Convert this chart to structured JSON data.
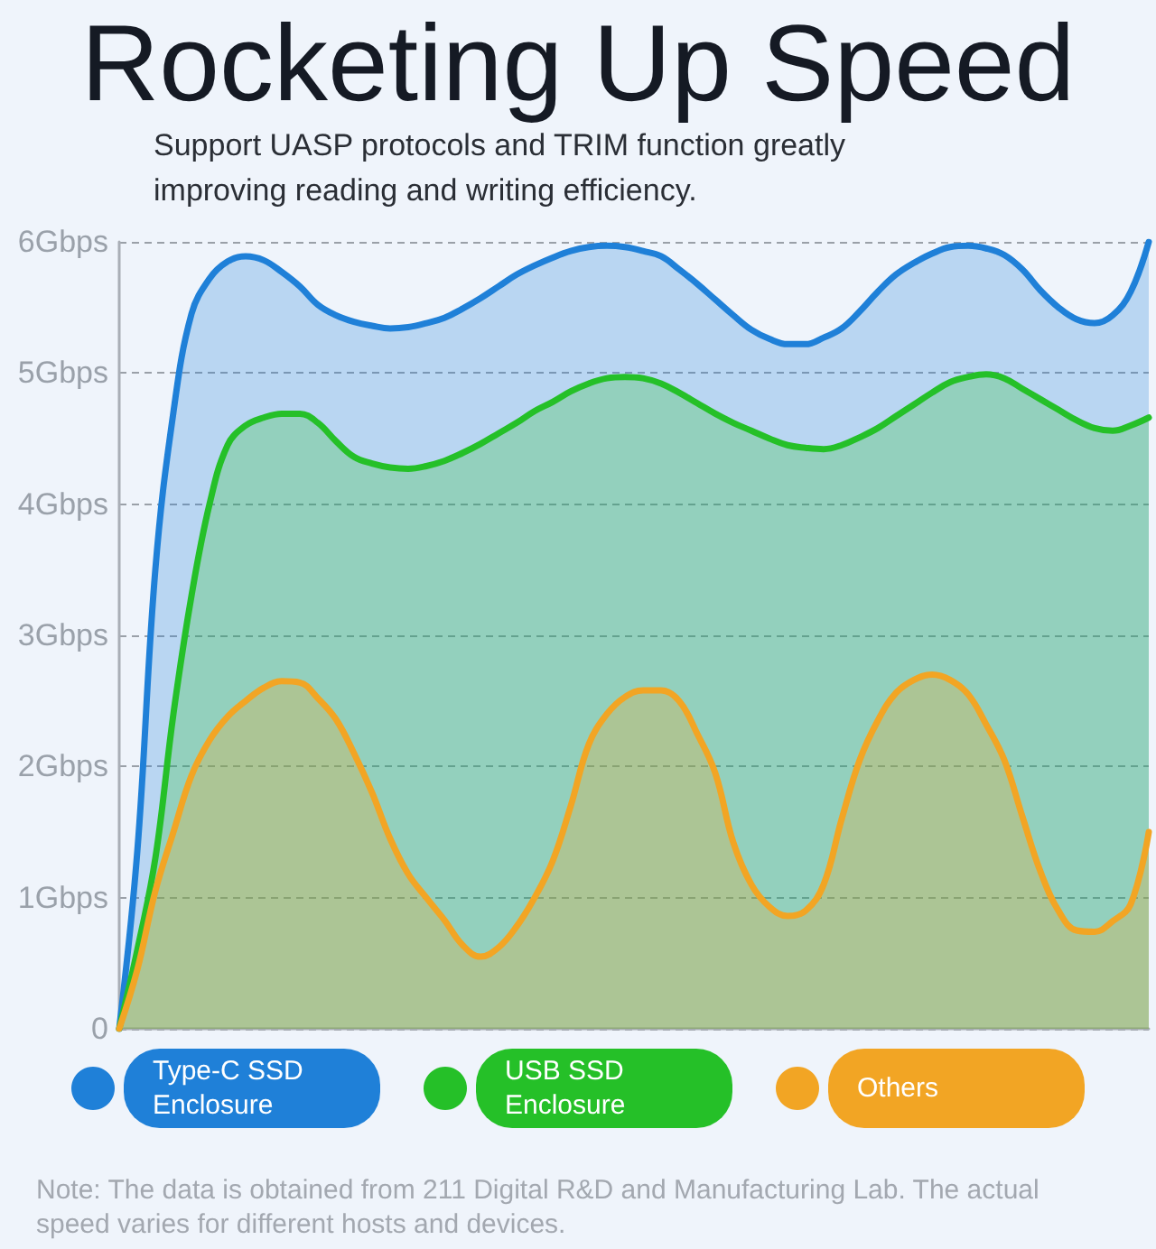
{
  "chart_data": {
    "type": "area",
    "title": "Rocketing Up Speed",
    "subtitle": "Support UASP protocols and TRIM function greatly improving reading and writing efficiency.",
    "categories": [
      null,
      null,
      null,
      null,
      null,
      null,
      null,
      null,
      null,
      null,
      null,
      null,
      null,
      null,
      null,
      null,
      null,
      null,
      null,
      null,
      null,
      null,
      null,
      null,
      null,
      null,
      null,
      null,
      null,
      null,
      null,
      null,
      null,
      null,
      null,
      null,
      null,
      null,
      null,
      null,
      null,
      null,
      null,
      null,
      null,
      null,
      null,
      null,
      null,
      null,
      null,
      null,
      null,
      null,
      null,
      null,
      null,
      null
    ],
    "series": [
      {
        "name": "Type-C SSD Enclosure",
        "color": "#1f80d8",
        "values": [
          0,
          1.35,
          3.5,
          4.7,
          5.45,
          5.72,
          5.85,
          5.89,
          5.86,
          5.77,
          5.66,
          5.52,
          5.44,
          5.39,
          5.36,
          5.34,
          5.35,
          5.38,
          5.42,
          5.49,
          5.57,
          5.66,
          5.75,
          5.82,
          5.88,
          5.93,
          5.96,
          5.97,
          5.96,
          5.93,
          5.89,
          5.79,
          5.68,
          5.56,
          5.44,
          5.33,
          5.26,
          5.22,
          5.22,
          5.27,
          5.34,
          5.47,
          5.62,
          5.75,
          5.84,
          5.91,
          5.96,
          5.97,
          5.95,
          5.9,
          5.79,
          5.63,
          5.5,
          5.41,
          5.38,
          5.44,
          5.62,
          6.0
        ]
      },
      {
        "name": "USB SSD Enclosure",
        "color": "#25c028",
        "values": [
          0,
          0.6,
          1.3,
          2.4,
          3.3,
          4.0,
          4.45,
          4.6,
          4.66,
          4.69,
          4.69,
          4.62,
          4.48,
          4.36,
          4.31,
          4.28,
          4.27,
          4.29,
          4.33,
          4.39,
          4.46,
          4.54,
          4.62,
          4.71,
          4.78,
          4.86,
          4.92,
          4.96,
          4.97,
          4.96,
          4.92,
          4.85,
          4.77,
          4.69,
          4.62,
          4.56,
          4.5,
          4.45,
          4.43,
          4.42,
          4.45,
          4.51,
          4.58,
          4.67,
          4.76,
          4.85,
          4.93,
          4.97,
          4.99,
          4.96,
          4.88,
          4.8,
          4.72,
          4.64,
          4.58,
          4.56,
          4.6,
          4.66
        ]
      },
      {
        "name": "Others",
        "color": "#f2a524",
        "values": [
          0,
          0.45,
          1.05,
          1.5,
          1.93,
          2.2,
          2.38,
          2.5,
          2.6,
          2.65,
          2.64,
          2.52,
          2.36,
          2.1,
          1.8,
          1.45,
          1.18,
          1.0,
          0.83,
          0.64,
          0.55,
          0.62,
          0.78,
          1.0,
          1.28,
          1.7,
          2.17,
          2.4,
          2.53,
          2.58,
          2.58,
          2.5,
          2.25,
          1.95,
          1.42,
          1.1,
          0.93,
          0.86,
          0.9,
          1.1,
          1.6,
          2.05,
          2.35,
          2.56,
          2.66,
          2.7,
          2.66,
          2.55,
          2.32,
          2.05,
          1.62,
          1.2,
          0.9,
          0.75,
          0.74,
          0.82,
          0.95,
          1.5
        ]
      }
    ],
    "ylim": [
      0,
      6
    ],
    "yticks": [
      0,
      {
        "value": 1,
        "label": "1Gbps"
      },
      {
        "value": 2,
        "label": "2Gbps"
      },
      {
        "value": 3,
        "label": "3Gbps"
      },
      {
        "value": 4,
        "label": "4Gbps"
      },
      {
        "value": 5,
        "label": "5Gbps"
      },
      {
        "value": 6,
        "label": "6Gbps"
      }
    ],
    "grid": "y",
    "legend": "bottom",
    "annotations": [
      "Note: The data is obtained from 211 Digital R&D and Manufacturing Lab. The actual speed varies for different hosts and devices."
    ]
  }
}
